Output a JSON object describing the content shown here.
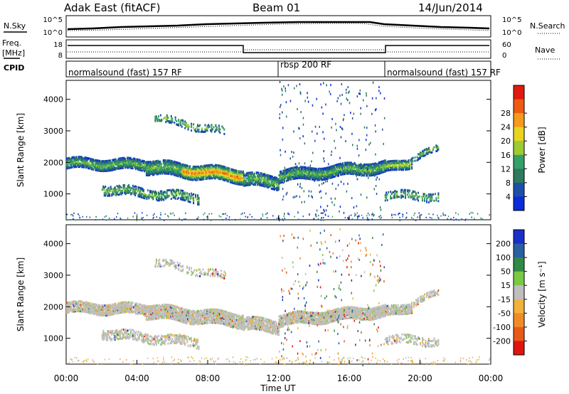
{
  "header": {
    "station": "Adak East (fitACF)",
    "beam": "Beam 01",
    "date": "14/Jun/2014"
  },
  "aux": {
    "nsky_label": "N.Sky",
    "nsearch_label": "N.Search",
    "freq_label_line1": "Freq.",
    "freq_label_line2": "[MHz]",
    "nave_label": "Nave",
    "cpid_label": "CPID",
    "sky_ticks": [
      "10^5",
      "10^0"
    ],
    "search_ticks": [
      "10^5",
      "10^0"
    ],
    "freq_ticks": [
      "18",
      "8"
    ],
    "nave_ticks": [
      "60",
      "0"
    ],
    "cpid_segments": [
      {
        "label": "normalsound (fast) 157 RF",
        "start": 0,
        "end": 12
      },
      {
        "label": "rbsp 200 RF",
        "start": 12,
        "end": 18
      },
      {
        "label": "normalsound (fast) 157 RF",
        "start": 18,
        "end": 24
      }
    ]
  },
  "chart_data": [
    {
      "type": "heatmap",
      "name": "power",
      "ylabel": "Slant Range [km]",
      "ylim": [
        180,
        4600
      ],
      "yticks": [
        "1000",
        "2000",
        "3000",
        "4000"
      ],
      "colorbar_label": "Power [dB]",
      "colorbar_ticks": [
        "4",
        "8",
        "12",
        "16",
        "20",
        "24",
        "28"
      ],
      "colors": [
        "#0b2cd9",
        "#1d4fa8",
        "#2e7a5c",
        "#35a06a",
        "#9ccb32",
        "#e8d41e",
        "#f59a1a",
        "#ee5a12",
        "#e01a0e"
      ]
    },
    {
      "type": "heatmap",
      "name": "velocity",
      "ylabel": "Slant Range [km]",
      "ylim": [
        180,
        4600
      ],
      "yticks": [
        "1000",
        "2000",
        "3000",
        "4000"
      ],
      "xlabel": "Time UT",
      "xticks": [
        "00:00",
        "04:00",
        "08:00",
        "12:00",
        "16:00",
        "20:00",
        "00:00"
      ],
      "colorbar_label": "Velocity [m s⁻¹]",
      "colorbar_ticks": [
        "200",
        "100",
        "50",
        "15",
        "-15",
        "-50",
        "-100",
        "-200"
      ],
      "colors": [
        "#1a2fc8",
        "#2a5fa0",
        "#2e8a46",
        "#7ac943",
        "#bebebe",
        "#f0b23a",
        "#f08c28",
        "#e85a18",
        "#e0140e"
      ]
    }
  ]
}
